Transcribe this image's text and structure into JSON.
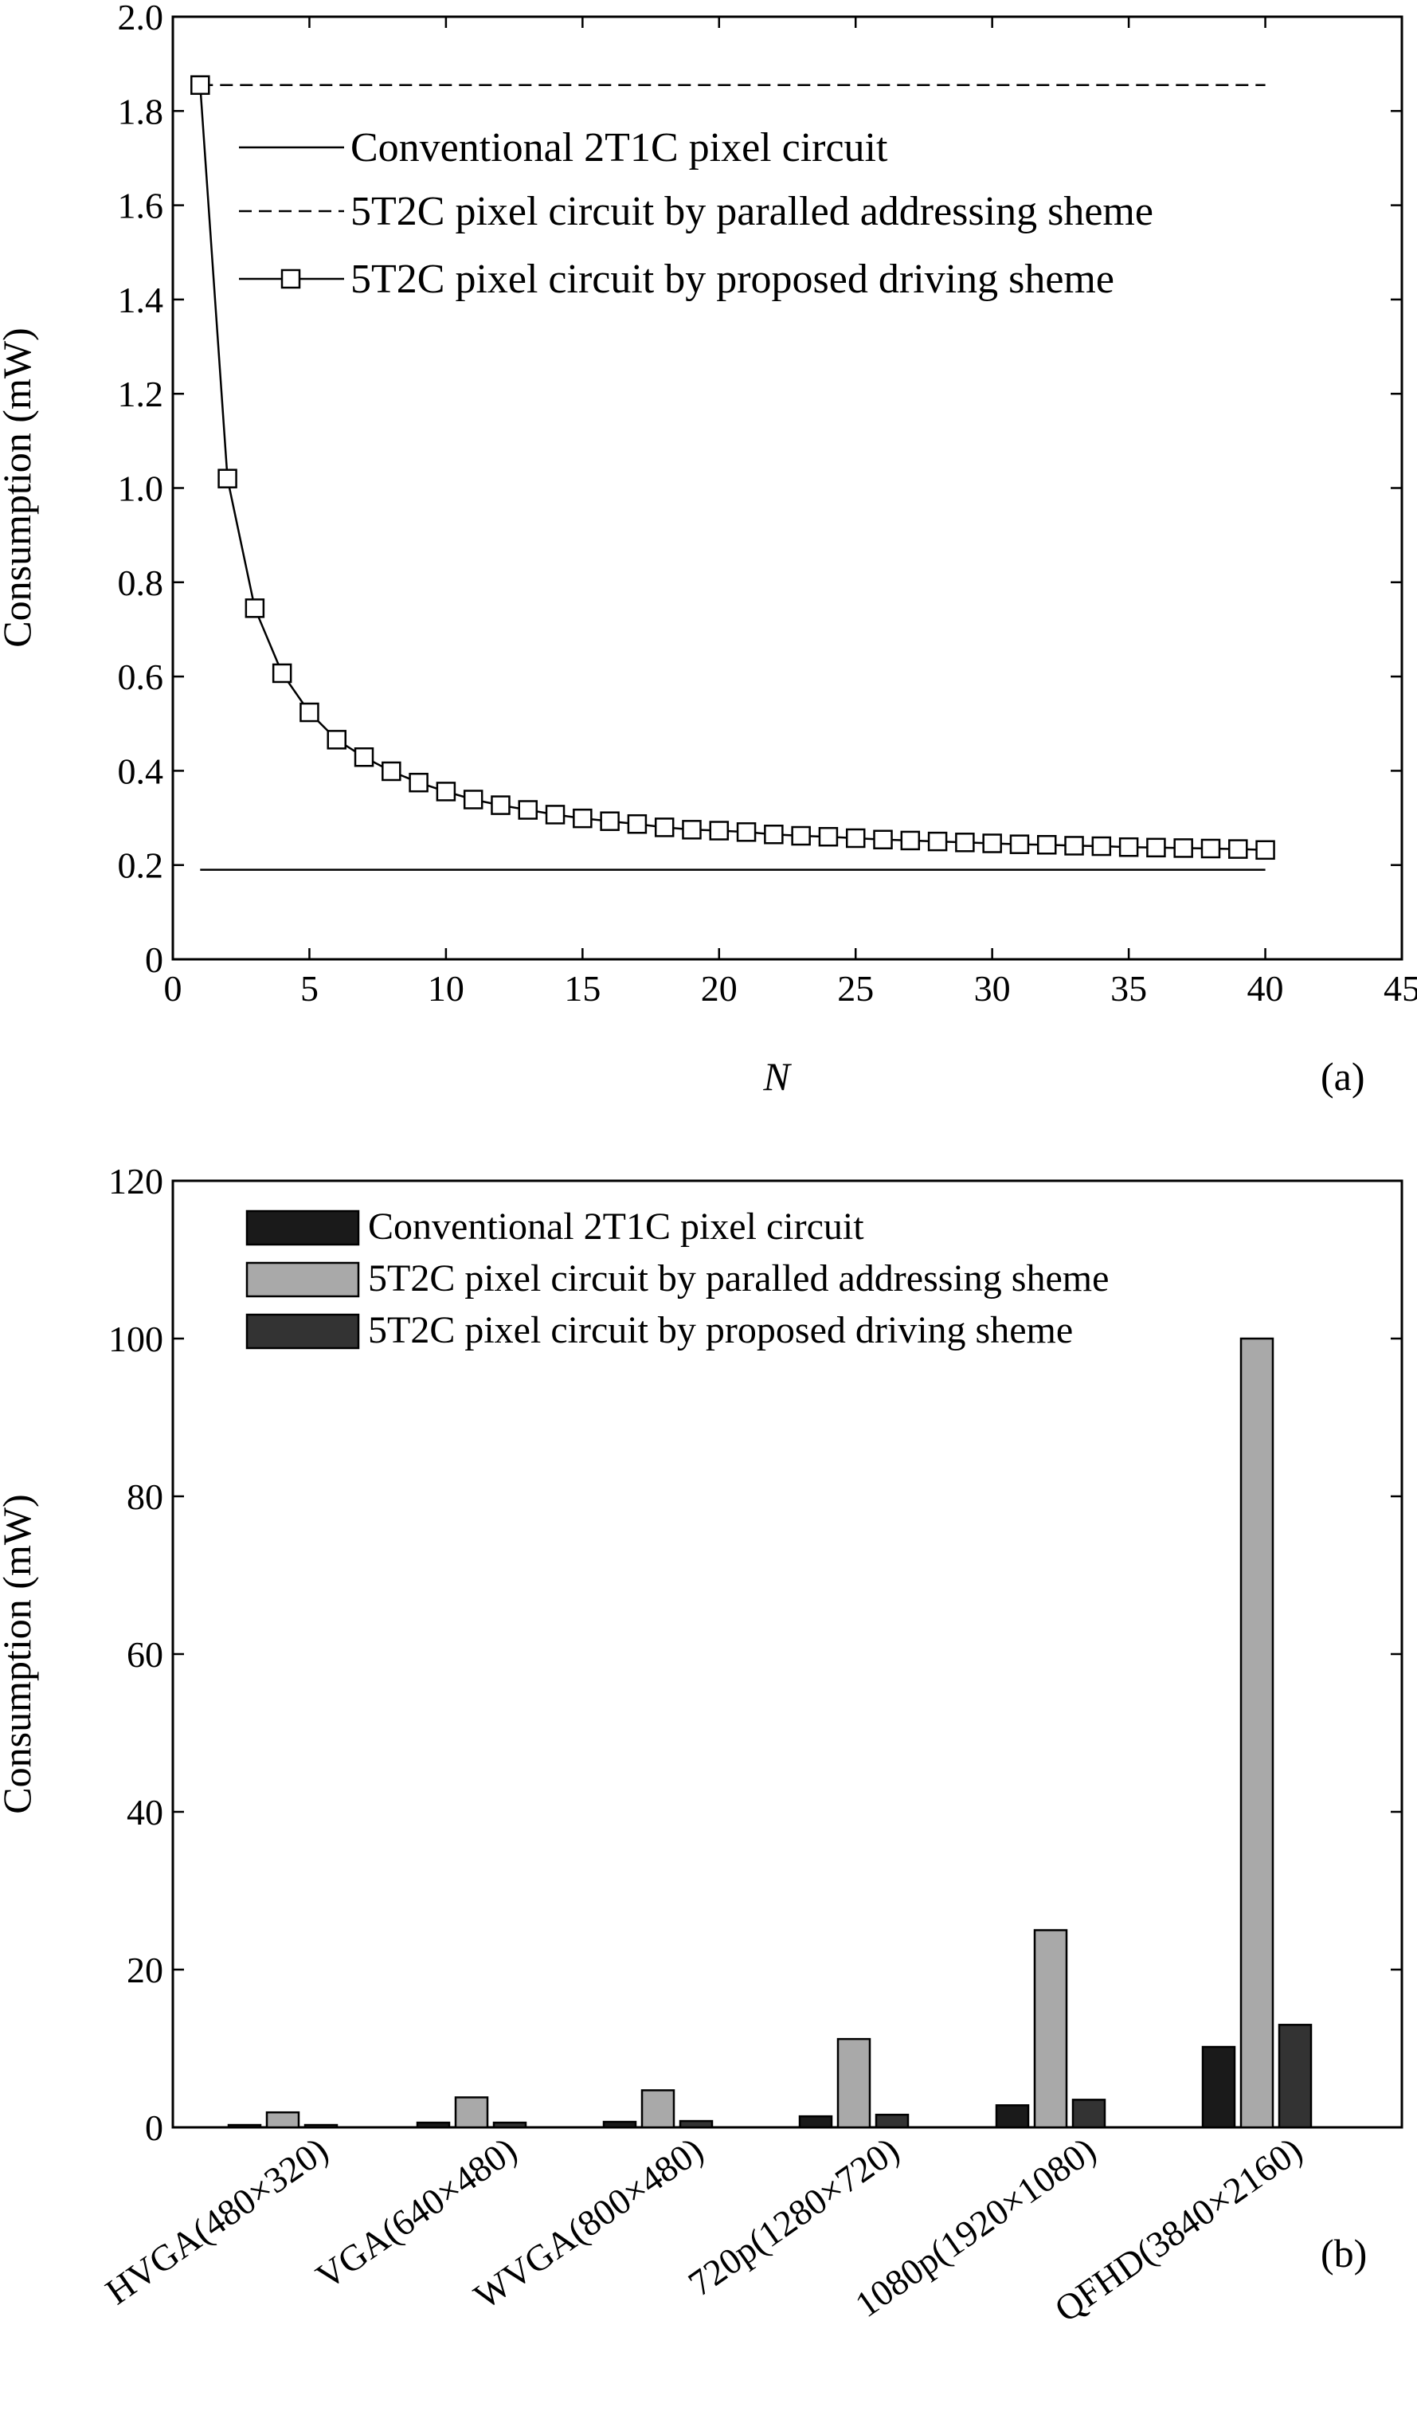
{
  "chart_data": [
    {
      "type": "line",
      "panel_label": "(a)",
      "xlabel": "N",
      "ylabel": "Consumption (mW)",
      "xlim": [
        0,
        45
      ],
      "ylim": [
        0,
        2.0
      ],
      "xticks": [
        "0",
        "5",
        "10",
        "15",
        "20",
        "25",
        "30",
        "35",
        "40",
        "45"
      ],
      "yticks": [
        "0",
        "0.2",
        "0.4",
        "0.6",
        "0.8",
        "1.0",
        "1.2",
        "1.4",
        "1.6",
        "1.8",
        "2.0"
      ],
      "grid": false,
      "legend_position": "top-right",
      "series": [
        {
          "name": "Conventional 2T1C pixel circuit",
          "style": "solid",
          "marker": "none",
          "x": [
            1,
            40
          ],
          "y": [
            0.19,
            0.19
          ]
        },
        {
          "name": "5T2C pixel circuit by paralled addressing sheme",
          "style": "dashed",
          "marker": "none",
          "x": [
            1,
            40
          ],
          "y": [
            1.855,
            1.855
          ]
        },
        {
          "name": "5T2C pixel circuit by proposed driving sheme",
          "style": "solid",
          "marker": "square",
          "x": [
            1,
            2,
            3,
            4,
            5,
            6,
            7,
            8,
            9,
            10,
            11,
            12,
            13,
            14,
            15,
            16,
            17,
            18,
            19,
            20,
            21,
            22,
            23,
            24,
            25,
            26,
            27,
            28,
            29,
            30,
            31,
            32,
            33,
            34,
            35,
            36,
            37,
            38,
            39,
            40
          ],
          "y": [
            1.855,
            1.02,
            0.745,
            0.607,
            0.524,
            0.466,
            0.429,
            0.399,
            0.375,
            0.356,
            0.339,
            0.327,
            0.317,
            0.307,
            0.299,
            0.293,
            0.287,
            0.28,
            0.275,
            0.273,
            0.27,
            0.265,
            0.262,
            0.26,
            0.257,
            0.254,
            0.252,
            0.25,
            0.248,
            0.246,
            0.244,
            0.243,
            0.241,
            0.24,
            0.238,
            0.237,
            0.236,
            0.235,
            0.234,
            0.232
          ]
        }
      ]
    },
    {
      "type": "bar",
      "panel_label": "(b)",
      "xlabel": "",
      "ylabel": "Consumption (mW)",
      "ylim": [
        0,
        120
      ],
      "yticks": [
        "0",
        "20",
        "40",
        "60",
        "80",
        "100",
        "120"
      ],
      "grid": false,
      "legend_position": "top-left",
      "categories": [
        "HVGA(480×320)",
        "VGA(640×480)",
        "WVGA(800×480)",
        "720p(1280×720)",
        "1080p(1920×1080)",
        "QFHD(3840×2160)"
      ],
      "series": [
        {
          "name": "Conventional 2T1C pixel circuit",
          "color": "#1a1a1a",
          "values": [
            0.3,
            0.6,
            0.7,
            1.4,
            2.8,
            10.2
          ]
        },
        {
          "name": "5T2C pixel circuit by paralled addressing sheme",
          "color": "#a9a9a9",
          "values": [
            1.9,
            3.8,
            4.7,
            11.2,
            25.0,
            100.0
          ]
        },
        {
          "name": "5T2C pixel circuit by proposed driving sheme",
          "color": "#333333",
          "values": [
            0.3,
            0.6,
            0.8,
            1.6,
            3.5,
            13.0
          ]
        }
      ]
    }
  ]
}
